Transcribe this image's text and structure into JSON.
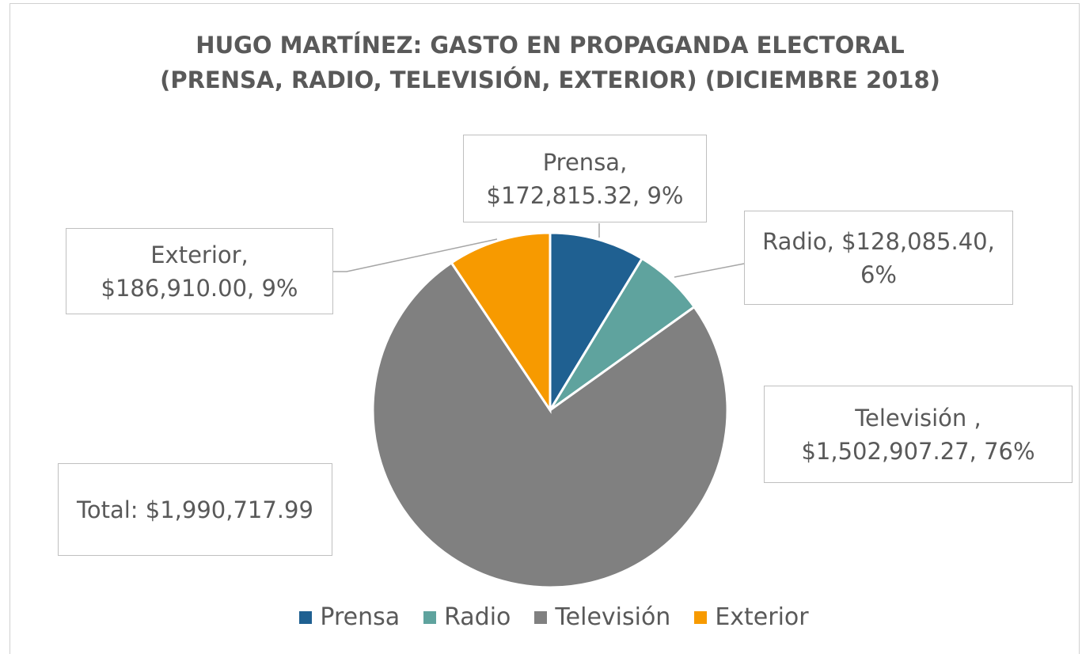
{
  "chart_data": {
    "type": "pie",
    "title": [
      "HUGO MARTÍNEZ: GASTO EN PROPAGANDA ELECTORAL",
      "(PRENSA, RADIO, TELEVISIÓN, EXTERIOR) (DICIEMBRE 2018)"
    ],
    "categories": [
      "Prensa",
      "Radio",
      "Televisión",
      "Exterior"
    ],
    "values": [
      172815.32,
      128085.4,
      1502907.27,
      186910.0
    ],
    "value_labels": [
      "Prensa, $172,815.32, 9%",
      "Radio, $128,085.40, 6%",
      "Televisión , $1,502,907.27, 76%",
      "Exterior, $186,910.00, 9%"
    ],
    "colors": [
      "#1f6091",
      "#5fa39e",
      "#808080",
      "#f79a00"
    ],
    "annotation": "Total: $1,990,717.99",
    "legend": "bottom"
  }
}
